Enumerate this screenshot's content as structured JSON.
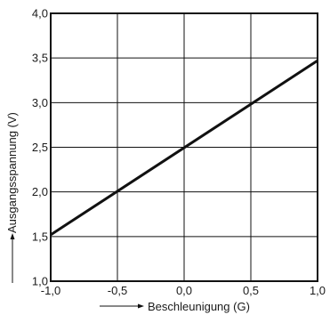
{
  "chart_data": {
    "type": "line",
    "title": "",
    "xlabel": "Beschleunigung (G)",
    "ylabel": "Ausgangsspannung (V)",
    "xlim": [
      -1.0,
      1.0
    ],
    "ylim": [
      1.0,
      4.0
    ],
    "x_ticks": [
      -1.0,
      -0.5,
      0.0,
      0.5,
      1.0
    ],
    "x_tick_labels": [
      "-1,0",
      "-0,5",
      "0,0",
      "0,5",
      "1,0"
    ],
    "y_ticks": [
      1.0,
      1.5,
      2.0,
      2.5,
      3.0,
      3.5,
      4.0
    ],
    "y_tick_labels": [
      "1,0",
      "1,5",
      "2,0",
      "2,5",
      "3,0",
      "3,5",
      "4,0"
    ],
    "grid": true,
    "series": [
      {
        "x": [
          -1.0,
          1.0
        ],
        "y": [
          1.52,
          3.47
        ]
      }
    ],
    "colors": {
      "line": "#111111",
      "grid": "#111111",
      "frame": "#111111"
    }
  }
}
